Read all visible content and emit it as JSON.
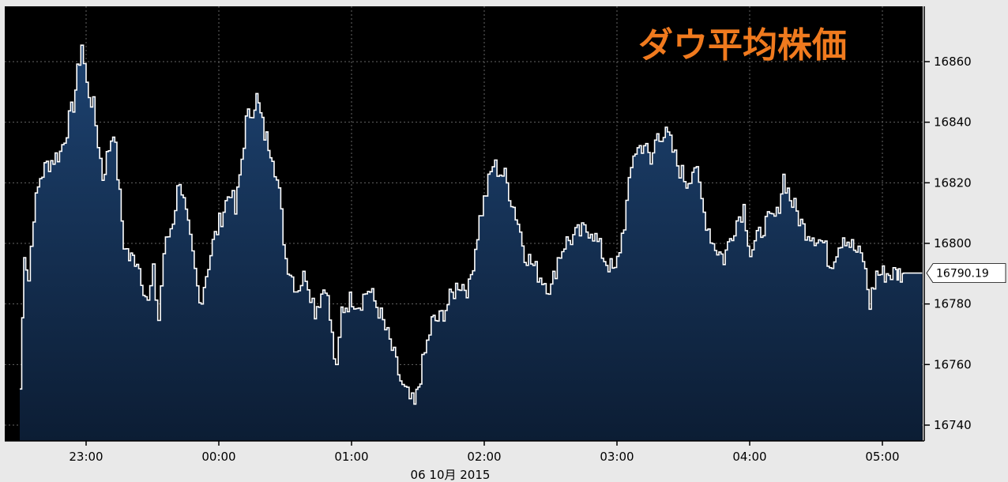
{
  "chart_data": {
    "type": "area",
    "title": "ダウ平均株価",
    "xlabel": "06 10月 2015",
    "ylabel": "",
    "ylim": [
      16736,
      16874
    ],
    "y_ticks": [
      16740,
      16760,
      16780,
      16800,
      16820,
      16840,
      16860
    ],
    "x_ticks": [
      "23:00",
      "00:00",
      "01:00",
      "02:00",
      "03:00",
      "04:00",
      "05:00"
    ],
    "x_tick_hours": [
      0.5,
      1.5,
      2.5,
      3.5,
      4.5,
      5.5,
      6.5
    ],
    "last_value_label": "16790.19",
    "grid": true,
    "colors": {
      "line": "#ffffff",
      "fill_top": "#1d4270",
      "fill_bottom": "#0c1d34",
      "background": "#000000",
      "axis_panel": "#e9e9e9",
      "title": "#f07a1e",
      "last_label_bg": "#ffffff"
    },
    "series": [
      {
        "x_hours": [
          0.0,
          0.03,
          0.06,
          0.1,
          0.15,
          0.2,
          0.3,
          0.4,
          0.46,
          0.5,
          0.55,
          0.62,
          0.7,
          0.78,
          0.82,
          0.88,
          0.96,
          1.0,
          1.04,
          1.08,
          1.15,
          1.2,
          1.28,
          1.35,
          1.45,
          1.58,
          1.62,
          1.7,
          1.78,
          1.84,
          1.9,
          1.95,
          2.0,
          2.08,
          2.15,
          2.22,
          2.3,
          2.38,
          2.42,
          2.5,
          2.55,
          2.62,
          2.7,
          2.8,
          2.88,
          2.97,
          3.03,
          3.1,
          3.16,
          3.22,
          3.3,
          3.38,
          3.46,
          3.56,
          3.65,
          3.75,
          3.8,
          3.9,
          4.0,
          4.05,
          4.1,
          4.2,
          4.3,
          4.4,
          4.48,
          4.55,
          4.62,
          4.7,
          4.75,
          4.8,
          4.88,
          4.95,
          5.02,
          5.08,
          5.15,
          5.22,
          5.3,
          5.38,
          5.45,
          5.5,
          5.55,
          5.6,
          5.7,
          5.75,
          5.8,
          5.9,
          5.97,
          6.05,
          6.1,
          6.2,
          6.3,
          6.35,
          6.4,
          6.45,
          6.5,
          6.56,
          6.6,
          6.62,
          6.65,
          6.66,
          6.8
        ],
        "values": [
          16752,
          16798,
          16788,
          16810,
          16822,
          16826,
          16830,
          16846,
          16866,
          16852,
          16845,
          16822,
          16838,
          16800,
          16795,
          16795,
          16780,
          16790,
          16775,
          16797,
          16808,
          16822,
          16800,
          16780,
          16800,
          16818,
          16810,
          16840,
          16848,
          16836,
          16830,
          16816,
          16795,
          16785,
          16790,
          16778,
          16787,
          16757,
          16778,
          16782,
          16780,
          16785,
          16778,
          16765,
          16752,
          16746,
          16760,
          16774,
          16775,
          16780,
          16787,
          16785,
          16808,
          16826,
          16822,
          16807,
          16797,
          16790,
          16785,
          16795,
          16800,
          16803,
          16805,
          16795,
          16790,
          16807,
          16830,
          16833,
          16826,
          16837,
          16835,
          16826,
          16820,
          16826,
          16810,
          16800,
          16795,
          16806,
          16812,
          16797,
          16801,
          16806,
          16809,
          16822,
          16815,
          16805,
          16803,
          16800,
          16793,
          16803,
          16797,
          16795,
          16780,
          16790,
          16790,
          16790,
          16790,
          16790,
          16790,
          16790.19,
          16790.19
        ]
      }
    ]
  }
}
